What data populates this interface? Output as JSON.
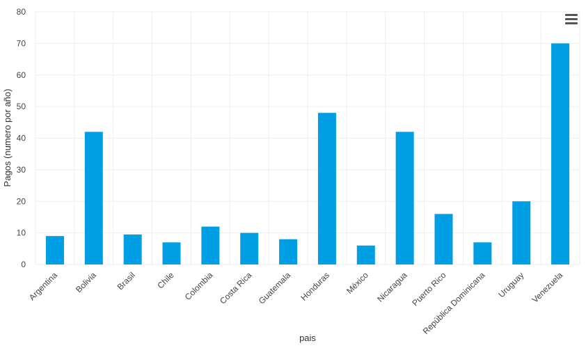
{
  "chart_data": {
    "type": "bar",
    "categories": [
      "Argentina",
      "Bolivia",
      "Brasil",
      "Chile",
      "Colombia",
      "Costa Rica",
      "Guatemala",
      "Honduras",
      "México",
      "Nicaragua",
      "Puerto Rico",
      "República Dominicana",
      "Uruguay",
      "Venezuela"
    ],
    "values": [
      9,
      42,
      9.5,
      7,
      12,
      10,
      8,
      48,
      6,
      42,
      16,
      7,
      20,
      70
    ],
    "xlabel": "pais",
    "ylabel": "Pagos (numero por año)",
    "ylim": [
      0,
      80
    ],
    "yticks": [
      0,
      10,
      20,
      30,
      40,
      50,
      60,
      70,
      80
    ],
    "grid": true,
    "bar_color": "#009ee3"
  },
  "menu": {
    "icon": "menu-icon"
  }
}
